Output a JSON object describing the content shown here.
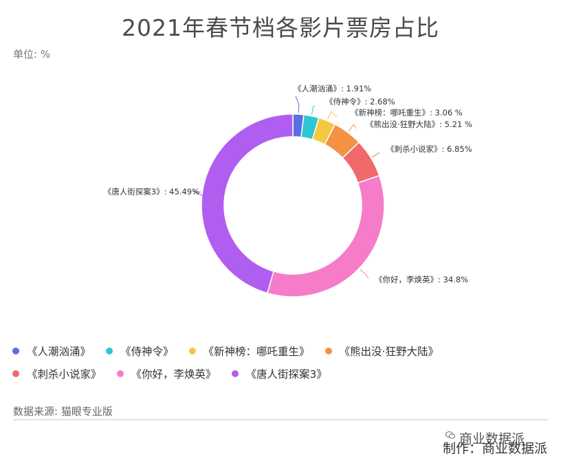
{
  "title": "2021年春节档各影片票房占比",
  "unit_label": "单位: %",
  "source_label": "数据来源: 猫眼专业版",
  "watermark": "商业数据派",
  "credit": "制作：商业数据派",
  "chart_data": {
    "type": "pie",
    "donut": true,
    "series": [
      {
        "name": "《人潮汹涌》",
        "value": 1.91,
        "color": "#5b6fe0",
        "label": "《人潮汹涌》: 1.91%"
      },
      {
        "name": "《侍神令》",
        "value": 2.68,
        "color": "#2ec7d1",
        "label": "《侍神令》: 2.68%"
      },
      {
        "name": "《新神榜：哪吒重生》",
        "value": 3.06,
        "color": "#f5c842",
        "label": "《新神榜：哪吒重生》: 3.06 %"
      },
      {
        "name": "《熊出没·狂野大陆》",
        "value": 5.21,
        "color": "#f39245",
        "label": "《熊出没·狂野大陆》: 5.21 %"
      },
      {
        "name": "《刺杀小说家》",
        "value": 6.85,
        "color": "#f06a6a",
        "label": "《刺杀小说家》: 6.85%"
      },
      {
        "name": "《你好，李焕英》",
        "value": 34.8,
        "color": "#f67bc8",
        "label": "《你好，李焕英》: 34.8%"
      },
      {
        "name": "《唐人街探案3》",
        "value": 45.49,
        "color": "#b05ef0",
        "label": "《唐人街探案3》: 45.49%"
      }
    ]
  }
}
